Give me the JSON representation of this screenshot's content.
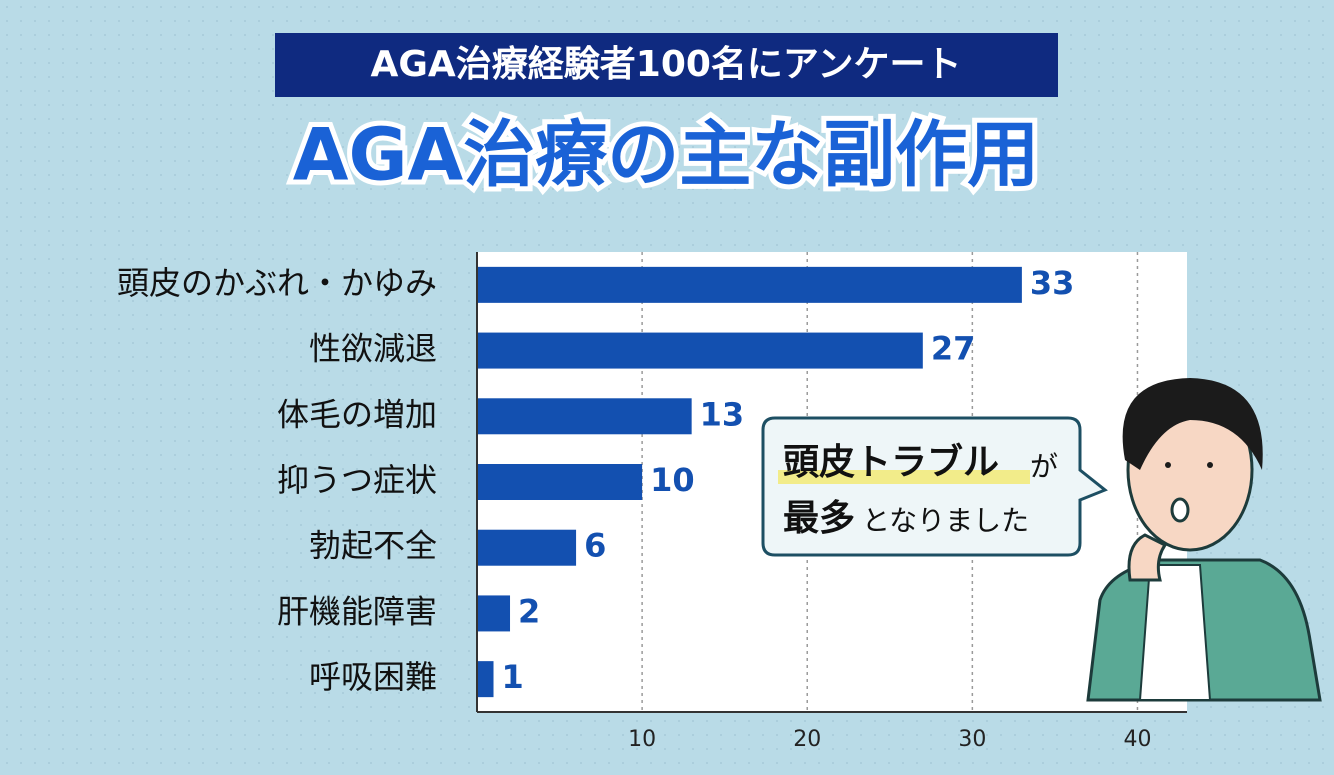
{
  "chart_data": {
    "type": "hbar",
    "subtitle": "AGA治療経験者100名にアンケート",
    "title": "AGA治療の主な副作用",
    "categories": [
      "頭皮のかぶれ・かゆみ",
      "性欲減退",
      "体毛の増加",
      "抑うつ症状",
      "勃起不全",
      "肝機能障害",
      "呼吸困難"
    ],
    "values": [
      33,
      27,
      13,
      10,
      6,
      2,
      1
    ],
    "color": "#1350b0",
    "xlim": [
      0,
      43
    ],
    "xticks": [
      10,
      20,
      30,
      40
    ],
    "grid": true,
    "callout": {
      "highlight": "頭皮トラブル",
      "particle": "が",
      "emphasis": "最多",
      "rest": "となりました"
    }
  }
}
